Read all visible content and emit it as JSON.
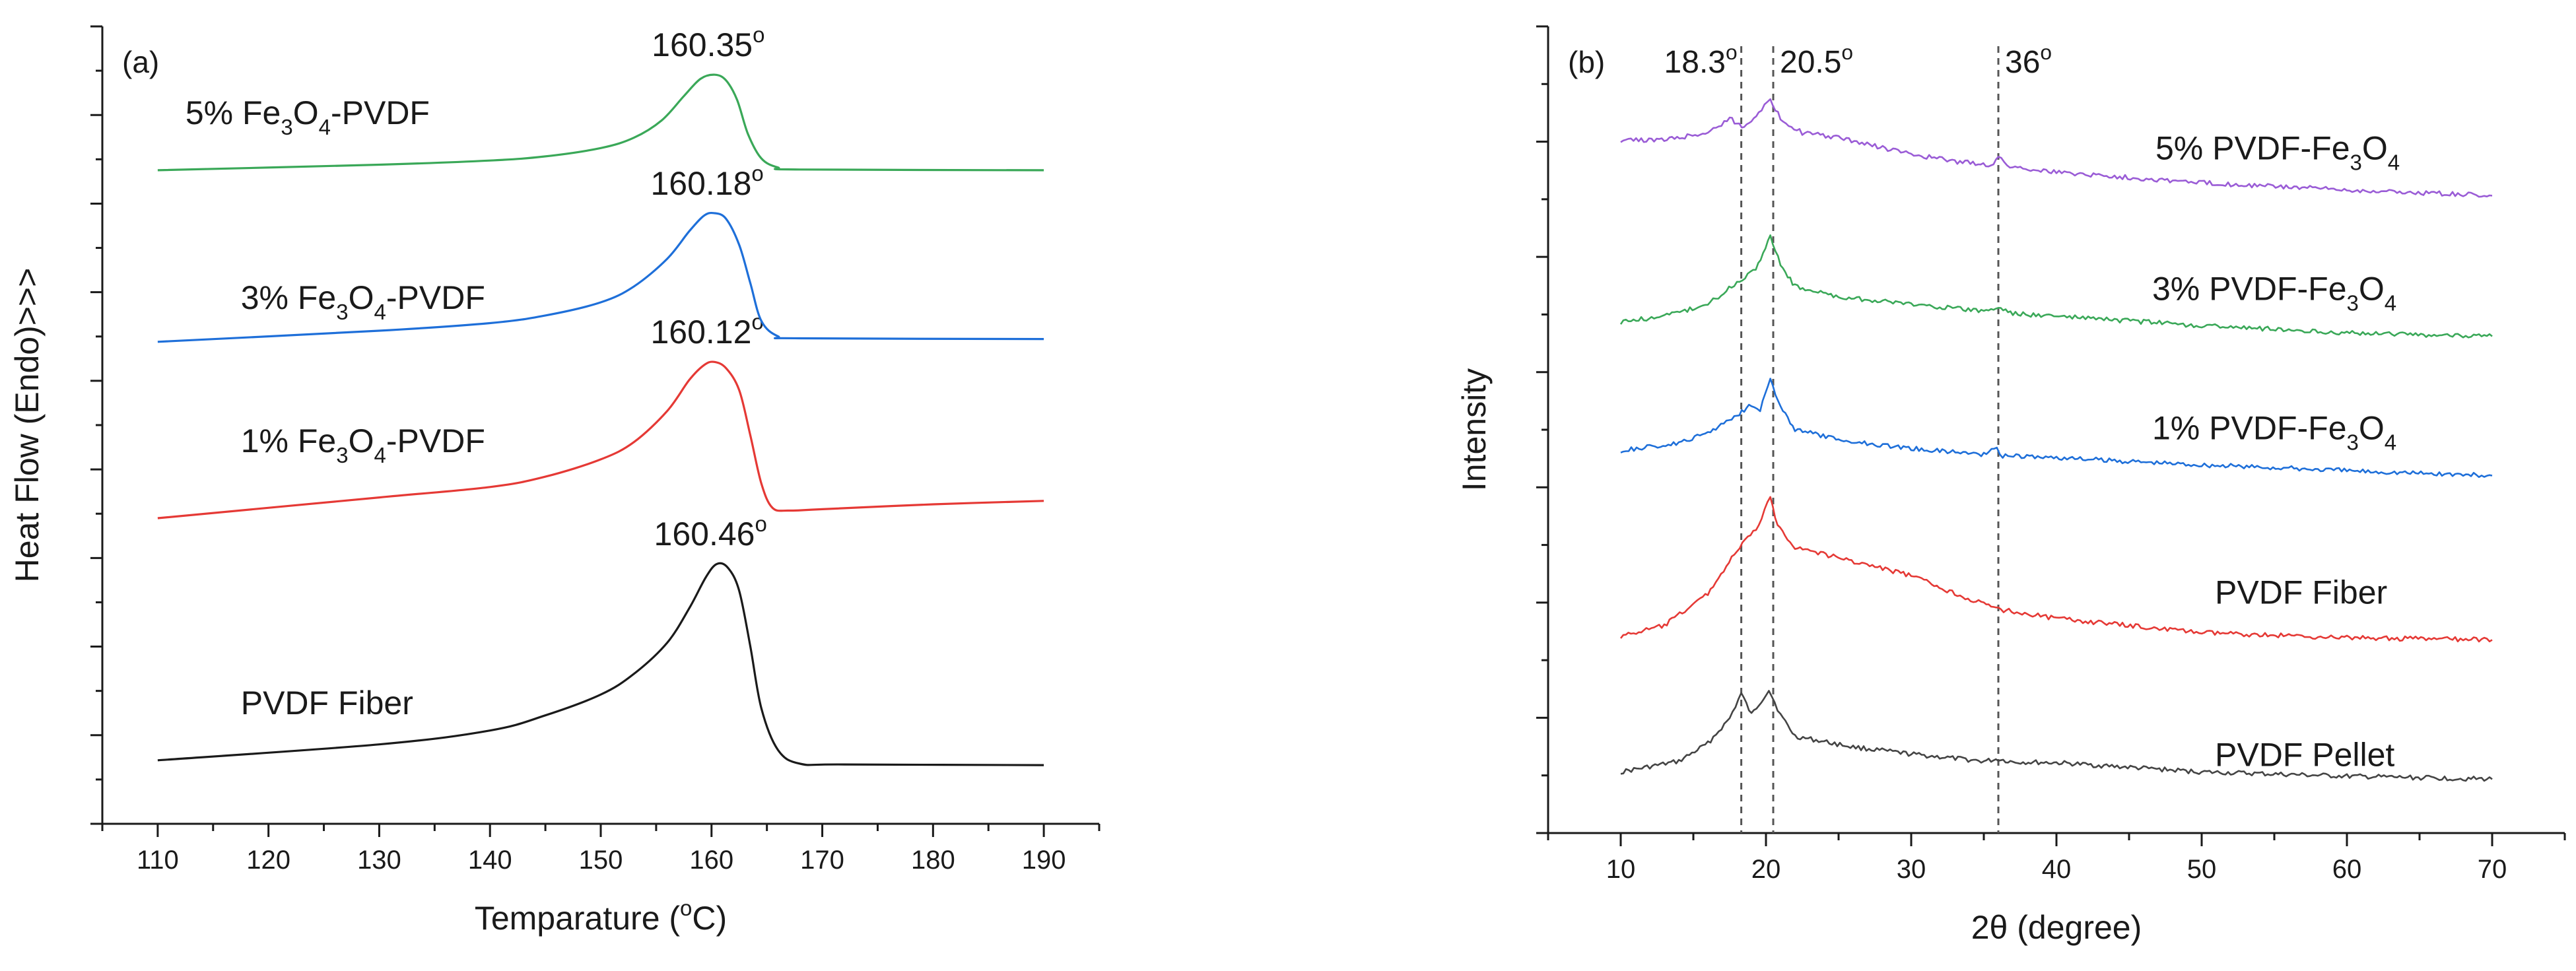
{
  "chart_data": [
    {
      "type": "line",
      "panel_label": "(a)",
      "title": "",
      "xlabel": {
        "pre": "Temparature (",
        "sup": "o",
        "post": "C)"
      },
      "ylabel": "Heat Flow (Endo)>>>",
      "xlim": [
        105,
        195
      ],
      "ylim": [
        0,
        100
      ],
      "xticks": [
        110,
        120,
        130,
        140,
        150,
        160,
        170,
        180,
        190
      ],
      "yticks_count": 18,
      "grid": false,
      "series": [
        {
          "name": "PVDF Fiber",
          "label_parts": [
            {
              "t": "PVDF Fiber",
              "s": "n"
            }
          ],
          "color": "#1a1a1a",
          "peak_label": "160.46",
          "peak_sup": "o",
          "points": [
            [
              110,
              2.5
            ],
            [
              130,
              4.8
            ],
            [
              140,
              6.8
            ],
            [
              145,
              9.0
            ],
            [
              150,
              12.0
            ],
            [
              153,
              15.0
            ],
            [
              156,
              19.5
            ],
            [
              158,
              24.5
            ],
            [
              159.5,
              29.0
            ],
            [
              160.5,
              30.9
            ],
            [
              161.5,
              30.3
            ],
            [
              162.5,
              27.0
            ],
            [
              163.5,
              19.0
            ],
            [
              164.5,
              10.0
            ],
            [
              166,
              4.0
            ],
            [
              168,
              2.0
            ],
            [
              172,
              1.9
            ],
            [
              190,
              1.8
            ]
          ]
        },
        {
          "name": "1% Fe3O4-PVDF",
          "label_parts": [
            {
              "t": "1% Fe",
              "s": "n"
            },
            {
              "t": "3",
              "s": "sub"
            },
            {
              "t": "O",
              "s": "n"
            },
            {
              "t": "4",
              "s": "sub"
            },
            {
              "t": "-PVDF",
              "s": "n"
            }
          ],
          "color": "#e53935",
          "peak_label": "160.12",
          "peak_sup": "o",
          "points": [
            [
              110,
              37.5
            ],
            [
              130,
              40.5
            ],
            [
              140,
              42.0
            ],
            [
              145,
              43.5
            ],
            [
              150,
              46.0
            ],
            [
              153,
              48.5
            ],
            [
              156,
              53.0
            ],
            [
              158,
              57.5
            ],
            [
              159.3,
              59.6
            ],
            [
              160.2,
              60.1
            ],
            [
              161.3,
              59.2
            ],
            [
              162.5,
              56.0
            ],
            [
              163.5,
              49.5
            ],
            [
              164.5,
              42.5
            ],
            [
              165.5,
              39.0
            ],
            [
              167,
              38.6
            ],
            [
              170,
              38.8
            ],
            [
              180,
              39.5
            ],
            [
              190,
              40.0
            ]
          ]
        },
        {
          "name": "3% Fe3O4-PVDF",
          "label_parts": [
            {
              "t": "3% Fe",
              "s": "n"
            },
            {
              "t": "3",
              "s": "sub"
            },
            {
              "t": "O",
              "s": "n"
            },
            {
              "t": "4",
              "s": "sub"
            },
            {
              "t": "-PVDF",
              "s": "n"
            }
          ],
          "color": "#1e6fd9",
          "peak_label": "160.18",
          "peak_sup": "o",
          "points": [
            [
              110,
              63.0
            ],
            [
              130,
              64.6
            ],
            [
              140,
              65.7
            ],
            [
              145,
              66.8
            ],
            [
              150,
              68.7
            ],
            [
              153,
              71.0
            ],
            [
              156,
              75.0
            ],
            [
              158,
              79.0
            ],
            [
              159.3,
              81.2
            ],
            [
              160.2,
              81.6
            ],
            [
              161.3,
              80.8
            ],
            [
              162.5,
              77.0
            ],
            [
              163.5,
              71.5
            ],
            [
              164.5,
              66.0
            ],
            [
              166,
              63.8
            ],
            [
              168,
              63.5
            ],
            [
              190,
              63.4
            ]
          ]
        },
        {
          "name": "5% Fe3O4-PVDF",
          "label_parts": [
            {
              "t": "5% Fe",
              "s": "n"
            },
            {
              "t": "3",
              "s": "sub"
            },
            {
              "t": "O",
              "s": "n"
            },
            {
              "t": "4",
              "s": "sub"
            },
            {
              "t": "-PVDF",
              "s": "n"
            }
          ],
          "color": "#3aa858",
          "peak_label": "160.35",
          "peak_sup": "o",
          "points": [
            [
              110,
              87.8
            ],
            [
              130,
              88.6
            ],
            [
              140,
              89.2
            ],
            [
              145,
              89.8
            ],
            [
              150,
              91.0
            ],
            [
              153,
              92.5
            ],
            [
              155.5,
              95.0
            ],
            [
              157.5,
              98.5
            ],
            [
              159,
              101.0
            ],
            [
              160.3,
              101.6
            ],
            [
              161.3,
              100.8
            ],
            [
              162.3,
              98.0
            ],
            [
              163.3,
              93.0
            ],
            [
              164.5,
              89.5
            ],
            [
              166,
              88.2
            ],
            [
              168,
              87.9
            ],
            [
              190,
              87.8
            ]
          ]
        }
      ]
    },
    {
      "type": "line",
      "panel_label": "(b)",
      "title": "",
      "xlabel": "2θ (degree)",
      "ylabel": "Intensity",
      "xlim": [
        5,
        75
      ],
      "ylim": [
        0,
        100
      ],
      "xticks": [
        10,
        20,
        30,
        40,
        50,
        60,
        70
      ],
      "yticks_count": 14,
      "grid": false,
      "reference_lines": [
        {
          "x": 18.3,
          "label": "18.3",
          "sup": "o"
        },
        {
          "x": 20.5,
          "label": "20.5",
          "sup": "o"
        },
        {
          "x": 36,
          "label": "36",
          "sup": "o"
        }
      ],
      "series": [
        {
          "name": "PVDF Pellet",
          "label_parts": [
            {
              "t": "PVDF Pellet",
              "s": "n"
            }
          ],
          "color": "#444444",
          "points": [
            [
              10,
              3.0
            ],
            [
              14,
              4.5
            ],
            [
              16,
              7.0
            ],
            [
              17.5,
              10.5
            ],
            [
              18.3,
              14.0
            ],
            [
              19,
              11.0
            ],
            [
              20.2,
              14.5
            ],
            [
              21,
              11.0
            ],
            [
              22,
              8.0
            ],
            [
              26,
              6.5
            ],
            [
              30,
              5.5
            ],
            [
              35,
              4.5
            ],
            [
              36,
              4.8
            ],
            [
              37,
              4.4
            ],
            [
              40,
              4.3
            ],
            [
              50,
              3.0
            ],
            [
              60,
              2.4
            ],
            [
              70,
              2.0
            ]
          ]
        },
        {
          "name": "PVDF Fiber",
          "label_parts": [
            {
              "t": "PVDF Fiber",
              "s": "n"
            }
          ],
          "color": "#e53935",
          "points": [
            [
              10,
              22.0
            ],
            [
              13,
              23.5
            ],
            [
              16,
              28.0
            ],
            [
              18,
              34.0
            ],
            [
              19.5,
              37.5
            ],
            [
              20.3,
              41.5
            ],
            [
              20.8,
              37.5
            ],
            [
              22,
              34.5
            ],
            [
              25,
              33.0
            ],
            [
              30,
              30.5
            ],
            [
              33,
              28.0
            ],
            [
              35,
              26.5
            ],
            [
              36,
              25.8
            ],
            [
              40,
              24.5
            ],
            [
              50,
              22.5
            ],
            [
              60,
              21.8
            ],
            [
              70,
              21.5
            ]
          ]
        },
        {
          "name": "1% PVDF-Fe3O4",
          "label_parts": [
            {
              "t": "1% PVDF-Fe",
              "s": "n"
            },
            {
              "t": "3",
              "s": "sub"
            },
            {
              "t": "O",
              "s": "n"
            },
            {
              "t": "4",
              "s": "sub"
            }
          ],
          "color": "#1e6fd9",
          "points": [
            [
              10,
              48.0
            ],
            [
              14,
              49.0
            ],
            [
              16,
              50.5
            ],
            [
              18,
              53.0
            ],
            [
              19,
              54.5
            ],
            [
              19.6,
              53.8
            ],
            [
              20.3,
              58.0
            ],
            [
              21,
              54.0
            ],
            [
              22,
              51.0
            ],
            [
              25,
              49.5
            ],
            [
              30,
              48.3
            ],
            [
              35,
              47.5
            ],
            [
              35.7,
              48.5
            ],
            [
              36.3,
              47.3
            ],
            [
              40,
              47.0
            ],
            [
              50,
              46.0
            ],
            [
              60,
              45.2
            ],
            [
              70,
              44.5
            ]
          ]
        },
        {
          "name": "3% PVDF-Fe3O4",
          "label_parts": [
            {
              "t": "3% PVDF-Fe",
              "s": "n"
            },
            {
              "t": "3",
              "s": "sub"
            },
            {
              "t": "O",
              "s": "n"
            },
            {
              "t": "4",
              "s": "sub"
            }
          ],
          "color": "#3aa858",
          "points": [
            [
              10,
              66.0
            ],
            [
              13,
              66.8
            ],
            [
              16,
              68.5
            ],
            [
              18,
              71.5
            ],
            [
              19.3,
              73.5
            ],
            [
              20.3,
              78.0
            ],
            [
              21,
              74.0
            ],
            [
              22,
              71.0
            ],
            [
              25,
              69.5
            ],
            [
              30,
              68.5
            ],
            [
              35,
              67.5
            ],
            [
              36,
              68.0
            ],
            [
              37,
              67.2
            ],
            [
              40,
              66.8
            ],
            [
              50,
              65.5
            ],
            [
              60,
              64.5
            ],
            [
              70,
              64.0
            ]
          ]
        },
        {
          "name": "5% PVDF-Fe3O4",
          "label_parts": [
            {
              "t": "5% PVDF-Fe",
              "s": "n"
            },
            {
              "t": "3",
              "s": "sub"
            },
            {
              "t": "O",
              "s": "n"
            },
            {
              "t": "4",
              "s": "sub"
            }
          ],
          "color": "#9a5cd6",
          "points": [
            [
              10,
              91.5
            ],
            [
              13,
              91.5
            ],
            [
              16,
              92.5
            ],
            [
              17.5,
              94.5
            ],
            [
              18.5,
              93.2
            ],
            [
              19.5,
              95.5
            ],
            [
              20.3,
              97.0
            ],
            [
              21,
              94.5
            ],
            [
              22.5,
              92.5
            ],
            [
              25,
              91.8
            ],
            [
              30,
              89.5
            ],
            [
              33,
              88.5
            ],
            [
              35.5,
              88.0
            ],
            [
              36,
              89.0
            ],
            [
              36.8,
              87.8
            ],
            [
              40,
              87.0
            ],
            [
              50,
              85.5
            ],
            [
              60,
              84.5
            ],
            [
              70,
              83.7
            ]
          ]
        }
      ]
    }
  ]
}
